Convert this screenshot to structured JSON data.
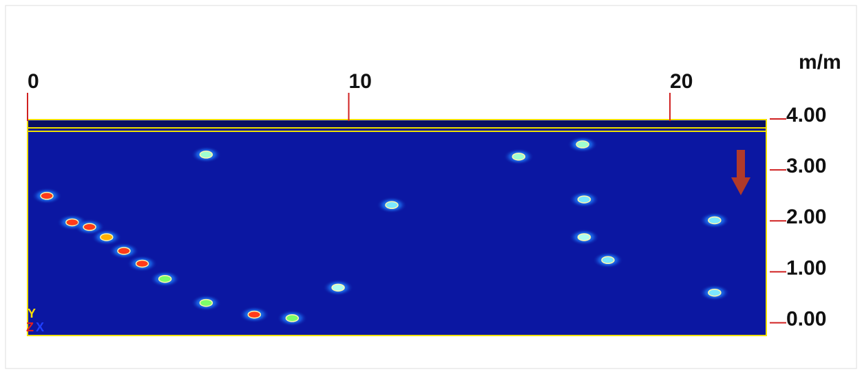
{
  "chart_data": {
    "type": "scatter",
    "unit_label": "m/m",
    "axis_letters": [
      "Y",
      "Z",
      "X"
    ],
    "xlim": [
      0,
      23
    ],
    "ylim": [
      -0.25,
      4
    ],
    "xticks": [
      0,
      10,
      20
    ],
    "yticks": [
      {
        "value": 4,
        "label": "4.00"
      },
      {
        "value": 3,
        "label": "3.00"
      },
      {
        "value": 2,
        "label": "2.00"
      },
      {
        "value": 1,
        "label": "1.00"
      },
      {
        "value": 0,
        "label": "0.00"
      }
    ],
    "x": [
      0.6,
      1.39,
      1.93,
      2.46,
      3.0,
      3.57,
      4.28,
      5.56,
      7.06,
      8.24,
      5.56,
      9.67,
      15.29,
      17.28,
      17.33,
      17.33,
      21.39,
      21.39,
      11.34,
      18.07
    ],
    "values": [
      2.49,
      1.97,
      1.88,
      1.68,
      1.41,
      1.16,
      0.86,
      0.39,
      0.16,
      0.09,
      3.3,
      0.69,
      3.26,
      3.5,
      1.68,
      2.42,
      2.01,
      0.59,
      2.31,
      1.23
    ],
    "colors": [
      "#ff3b1a",
      "#ff3b1a",
      "#ff3b1a",
      "#ffb000",
      "#ff3b1a",
      "#ff3b1a",
      "#7cff6a",
      "#7cff6a",
      "#ff3b1a",
      "#7cff6a",
      "#9fffd0",
      "#b0fff0",
      "#9fffd0",
      "#9fffd0",
      "#b0fff0",
      "#7ce8ff",
      "#7ce8ff",
      "#7ce8ff",
      "#7ce8ff",
      "#7ce8ff"
    ]
  }
}
